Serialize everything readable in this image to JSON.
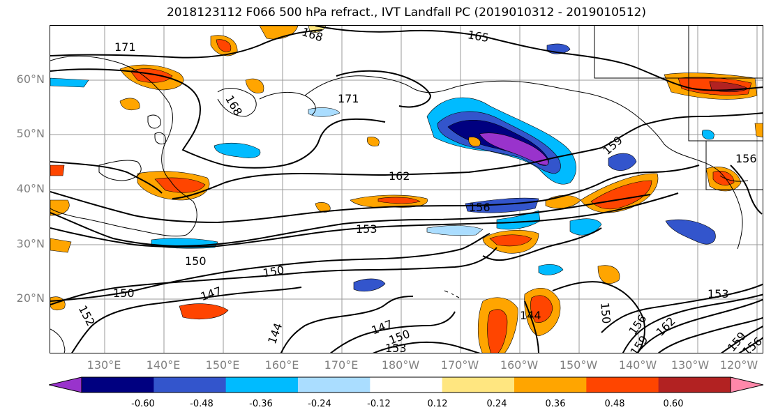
{
  "title": "2018123112 F066 500 hPa refract., IVT Landfall PC (2019010312 - 2019010512)",
  "lat_labels": [
    "60°N",
    "50°N",
    "40°N",
    "30°N",
    "20°N"
  ],
  "lon_labels": [
    "130°E",
    "140°E",
    "150°E",
    "160°E",
    "170°E",
    "180°W",
    "170°W",
    "160°W",
    "150°W",
    "140°W",
    "130°W",
    "120°W"
  ],
  "colorbar": {
    "labels": [
      "-0.60",
      "-0.48",
      "-0.36",
      "-0.24",
      "-0.12",
      "0.12",
      "0.24",
      "0.36",
      "0.48",
      "0.60"
    ],
    "colors": [
      "#9933cc",
      "#000080",
      "#3355cc",
      "#00bbff",
      "#aaddff",
      "#ffffff",
      "#ffe680",
      "#ffa500",
      "#ff4500",
      "#b22222",
      "#ff88aa"
    ]
  },
  "contour_labels": [
    "171",
    "168",
    "165",
    "168",
    "171",
    "162",
    "159",
    "156",
    "156",
    "153",
    "150",
    "150",
    "150",
    "147",
    "152",
    "144",
    "147",
    "150",
    "153",
    "144",
    "150",
    "156",
    "162",
    "153",
    "159",
    "159",
    "156"
  ]
}
